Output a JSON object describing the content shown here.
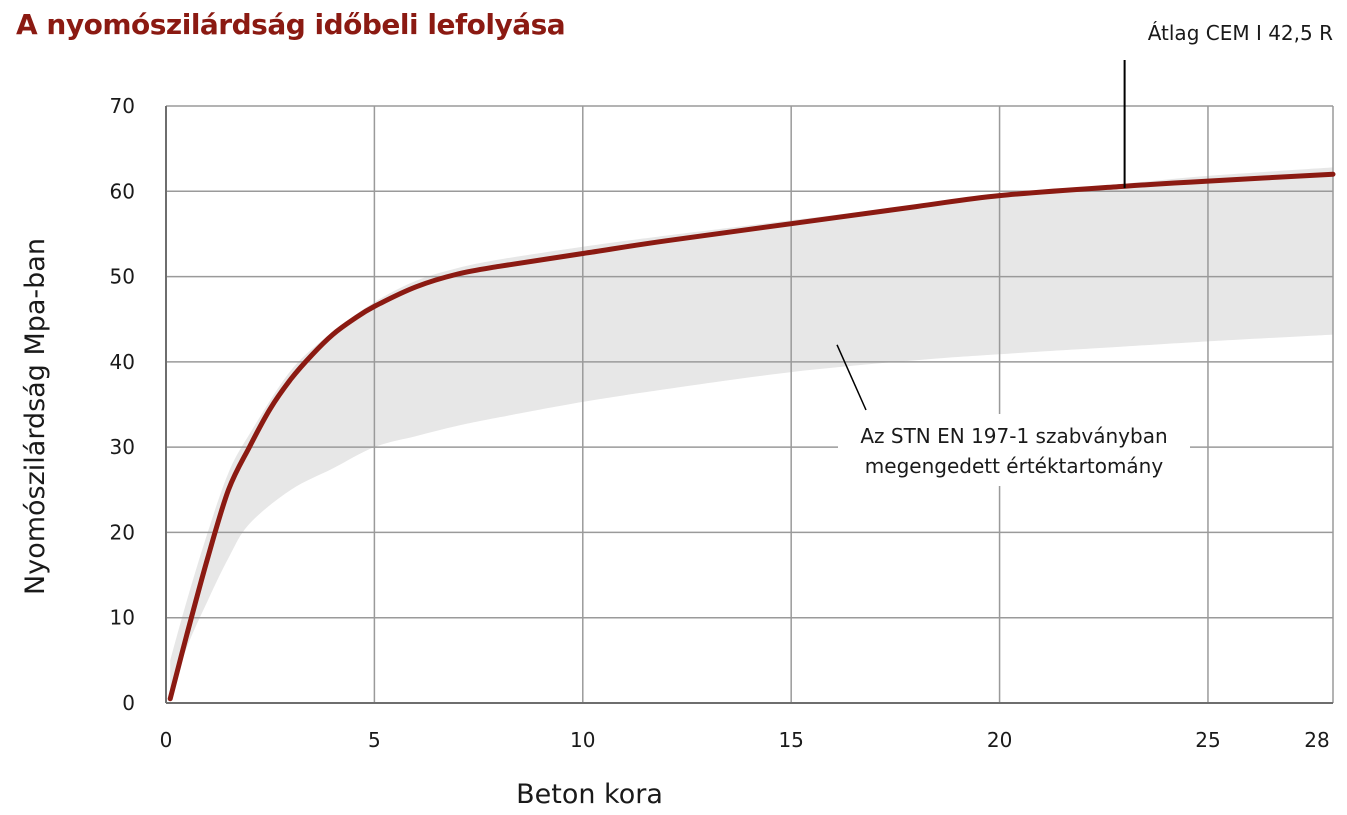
{
  "chart_data": {
    "type": "line",
    "title": "A nyomószilárdság időbeli lefolyása",
    "xlabel": "Beton kora",
    "ylabel": "Nyomószilárdság Mpa-ban",
    "xlim": [
      0,
      28
    ],
    "ylim": [
      0,
      70
    ],
    "x_ticks": [
      0,
      5,
      10,
      15,
      20,
      25,
      28
    ],
    "y_ticks": [
      0,
      10,
      20,
      30,
      40,
      50,
      60,
      70
    ],
    "grid": true,
    "series": [
      {
        "name": "Átlag CEM I 42,5 R",
        "color": "#8b1a12",
        "x": [
          0.1,
          0.5,
          1,
          1.5,
          2,
          2.5,
          3,
          3.5,
          4,
          4.5,
          5,
          6,
          7,
          8,
          10,
          12,
          15,
          18,
          20,
          23,
          25,
          28
        ],
        "y": [
          0.5,
          8,
          17,
          25,
          30,
          34.5,
          38,
          40.8,
          43.2,
          45,
          46.5,
          48.8,
          50.3,
          51.2,
          52.7,
          54.2,
          56.2,
          58.2,
          59.5,
          60.6,
          61.2,
          62
        ]
      }
    ],
    "band": {
      "label": "Az STN EN 197-1 szabványban megengedett értéktartomány",
      "label_lines": [
        "Az STN EN 197-1 szabványban",
        "megengedett értéktartomány"
      ],
      "color": "#e7e7e7",
      "x": [
        0.1,
        0.5,
        1,
        1.5,
        2,
        3,
        4,
        5,
        6,
        7,
        8,
        10,
        12,
        15,
        18,
        20,
        23,
        25,
        28
      ],
      "upper": [
        5,
        12,
        20,
        27,
        31.5,
        39,
        43.5,
        47,
        49.5,
        51,
        52,
        53.5,
        54.8,
        56.6,
        58.4,
        59.6,
        60.9,
        61.8,
        62.8
      ],
      "lower": [
        0.5,
        6.5,
        12,
        17,
        21,
        25,
        27.5,
        30,
        31.3,
        32.5,
        33.5,
        35.3,
        36.8,
        38.8,
        40.2,
        40.9,
        41.8,
        42.4,
        43.2
      ]
    }
  }
}
